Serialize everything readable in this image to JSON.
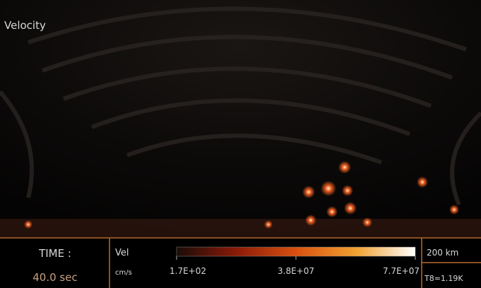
{
  "view": {
    "title": "Velocity"
  },
  "footer": {
    "time_label": "TIME :",
    "time_value": "40.0 sec",
    "colorbar": {
      "variable": "Vel",
      "unit": "cm/s",
      "labels": [
        "1.7E+02",
        "3.8E+07",
        "7.7E+07"
      ]
    },
    "scale": "200 km",
    "note": "T8=1.19K"
  }
}
